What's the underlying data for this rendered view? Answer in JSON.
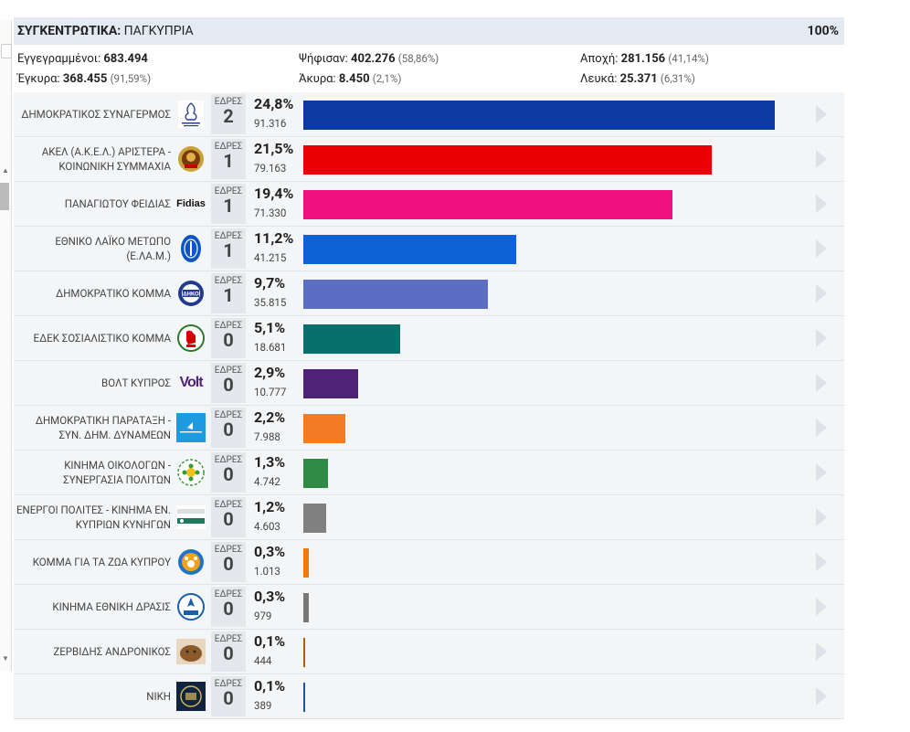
{
  "header": {
    "title_bold": "ΣΥΓΚΕΝΤΡΩΤΙΚΑ:",
    "title_rest": "ΠΑΓΚΥΠΡΙΑ",
    "progress": "100%"
  },
  "summary": {
    "registered_label": "Εγγεγραμμένοι:",
    "registered_value": "683.494",
    "voted_label": "Ψήφισαν:",
    "voted_value": "402.276",
    "voted_pct": "(58,86%)",
    "abstention_label": "Αποχή:",
    "abstention_value": "281.156",
    "abstention_pct": "(41,14%)",
    "valid_label": "Έγκυρα:",
    "valid_value": "368.455",
    "valid_pct": "(91,59%)",
    "invalid_label": "Άκυρα:",
    "invalid_value": "8.450",
    "invalid_pct": "(2,1%)",
    "blank_label": "Λευκά:",
    "blank_value": "25.371",
    "blank_pct": "(6,31%)"
  },
  "seats_label": "ΕΔΡΕΣ",
  "chart_data": {
    "type": "bar",
    "orientation": "horizontal",
    "categories": [
      "ΔΗΜΟΚΡΑΤΙΚΟΣ ΣΥΝΑΓΕΡΜΟΣ",
      "ΑΚΕΛ (Α.Κ.Ε.Λ.) ΑΡΙΣΤΕΡΑ - ΚΟΙΝΩΝΙΚΗ ΣΥΜΜΑΧΙΑ",
      "ΠΑΝΑΓΙΩΤΟΥ ΦΕΙΔΙΑΣ",
      "ΕΘΝΙΚΟ ΛΑΪΚΟ ΜΕΤΩΠΟ (Ε.ΛΑ.Μ.)",
      "ΔΗΜΟΚΡΑΤΙΚΟ ΚΟΜΜΑ",
      "ΕΔΕΚ ΣΟΣΙΑΛΙΣΤΙΚΟ ΚΟΜΜΑ",
      "ΒΟΛΤ ΚΥΠΡΟΣ",
      "ΔΗΜΟΚΡΑΤΙΚΗ ΠΑΡΑΤΑΞΗ - ΣΥΝ. ΔΗΜ. ΔΥΝΑΜΕΩΝ",
      "ΚΙΝΗΜΑ ΟΙΚΟΛΟΓΩΝ - ΣΥΝΕΡΓΑΣΙΑ ΠΟΛΙΤΩΝ",
      "ΕΝΕΡΓΟΙ ΠΟΛΙΤΕΣ - ΚΙΝΗΜΑ ΕΝ. ΚΥΠΡΙΩΝ ΚΥΝΗΓΩΝ",
      "ΚΟΜΜΑ ΓΙΑ ΤΑ ΖΩΑ ΚΥΠΡΟΥ",
      "ΚΙΝΗΜΑ ΕΘΝΙΚΗ ΔΡΑΣΙΣ",
      "ΖΕΡΒΙΔΗΣ ΑΝΔΡΟΝΙΚΟΣ",
      "ΝΙΚΗ"
    ],
    "values": [
      24.8,
      21.5,
      19.4,
      11.2,
      9.7,
      5.1,
      2.9,
      2.2,
      1.3,
      1.2,
      0.3,
      0.3,
      0.1,
      0.1
    ],
    "xlim": [
      0,
      30
    ],
    "rows": [
      {
        "name": "ΔΗΜΟΚΡΑΤΙΚΟΣ ΣΥΝΑΓΕΡΜΟΣ",
        "seats": "2",
        "pct_label": "24,8%",
        "votes": "91.316",
        "pct": 24.8,
        "color": "#0b3aa1",
        "icon": "ds-logo-icon"
      },
      {
        "name": "ΑΚΕΛ (Α.Κ.Ε.Λ.) ΑΡΙΣΤΕΡΑ - ΚΟΙΝΩΝΙΚΗ ΣΥΜΜΑΧΙΑ",
        "seats": "1",
        "pct_label": "21,5%",
        "votes": "79.163",
        "pct": 21.5,
        "color": "#ea0000",
        "icon": "akel-logo-icon"
      },
      {
        "name": "ΠΑΝΑΓΙΩΤΟΥ ΦΕΙΔΙΑΣ",
        "seats": "1",
        "pct_label": "19,4%",
        "votes": "71.330",
        "pct": 19.4,
        "color": "#f0117e",
        "icon": "fidias-logo-icon",
        "logo_text": "Fidias"
      },
      {
        "name": "ΕΘΝΙΚΟ ΛΑΪΚΟ ΜΕΤΩΠΟ (Ε.ΛΑ.Μ.)",
        "seats": "1",
        "pct_label": "11,2%",
        "votes": "41.215",
        "pct": 11.2,
        "color": "#0b63d6",
        "icon": "elam-logo-icon"
      },
      {
        "name": "ΔΗΜΟΚΡΑΤΙΚΟ ΚΟΜΜΑ",
        "seats": "1",
        "pct_label": "9,7%",
        "votes": "35.815",
        "pct": 9.7,
        "color": "#5b6ec2",
        "icon": "diko-logo-icon"
      },
      {
        "name": "ΕΔΕΚ ΣΟΣΙΑΛΙΣΤΙΚΟ ΚΟΜΜΑ",
        "seats": "0",
        "pct_label": "5,1%",
        "votes": "18.681",
        "pct": 5.1,
        "color": "#05716a",
        "icon": "edek-logo-icon"
      },
      {
        "name": "ΒΟΛΤ ΚΥΠΡΟΣ",
        "seats": "0",
        "pct_label": "2,9%",
        "votes": "10.777",
        "pct": 2.9,
        "color": "#502379",
        "icon": "volt-logo-icon",
        "logo_text": "Volt"
      },
      {
        "name": "ΔΗΜΟΚΡΑΤΙΚΗ ΠΑΡΑΤΑΞΗ - ΣΥΝ. ΔΗΜ. ΔΥΝΑΜΕΩΝ",
        "seats": "0",
        "pct_label": "2,2%",
        "votes": "7.988",
        "pct": 2.2,
        "color": "#f27b25",
        "icon": "dipa-logo-icon"
      },
      {
        "name": "ΚΙΝΗΜΑ ΟΙΚΟΛΟΓΩΝ - ΣΥΝΕΡΓΑΣΙΑ ΠΟΛΙΤΩΝ",
        "seats": "0",
        "pct_label": "1,3%",
        "votes": "4.742",
        "pct": 1.3,
        "color": "#2e8a45",
        "icon": "ecologists-logo-icon"
      },
      {
        "name": "ΕΝΕΡΓΟΙ ΠΟΛΙΤΕΣ - ΚΙΝΗΜΑ ΕΝ. ΚΥΠΡΙΩΝ ΚΥΝΗΓΩΝ",
        "seats": "0",
        "pct_label": "1,2%",
        "votes": "4.603",
        "pct": 1.2,
        "color": "#808080",
        "icon": "active-citizens-logo-icon"
      },
      {
        "name": "ΚΟΜΜΑ ΓΙΑ ΤΑ ΖΩΑ ΚΥΠΡΟΥ",
        "seats": "0",
        "pct_label": "0,3%",
        "votes": "1.013",
        "pct": 0.3,
        "color": "#ee7a0c",
        "icon": "animals-party-logo-icon"
      },
      {
        "name": "ΚΙΝΗΜΑ ΕΘΝΙΚΗ ΔΡΑΣΙΣ",
        "seats": "0",
        "pct_label": "0,3%",
        "votes": "979",
        "pct": 0.3,
        "color": "#777777",
        "icon": "ethniki-drasis-logo-icon"
      },
      {
        "name": "ΖΕΡΒΙΔΗΣ ΑΝΔΡΟΝΙΚΟΣ",
        "seats": "0",
        "pct_label": "0,1%",
        "votes": "444",
        "pct": 0.1,
        "color": "#b25e00",
        "icon": "candidate-photo-icon"
      },
      {
        "name": "ΝΙΚΗ",
        "seats": "0",
        "pct_label": "0,1%",
        "votes": "389",
        "pct": 0.1,
        "color": "#1f4fa8",
        "icon": "niki-logo-icon"
      }
    ]
  }
}
